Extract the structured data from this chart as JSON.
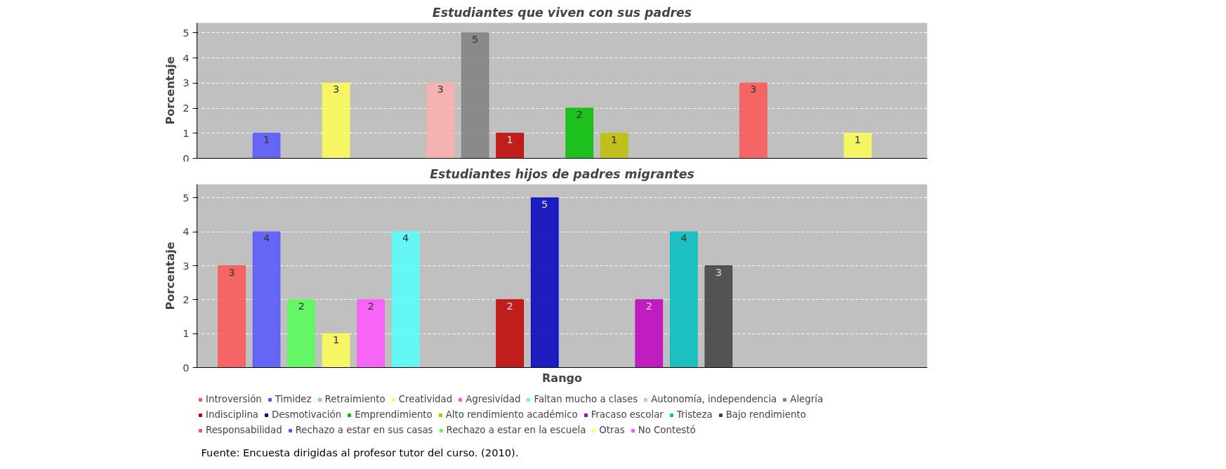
{
  "chart_data": [
    {
      "type": "bar",
      "title": "Estudiantes que viven con sus padres",
      "ylabel": "Porcentaje",
      "categories": [
        null
      ],
      "ylim": [
        0,
        5.4
      ],
      "yticks": [
        0,
        1,
        2,
        3,
        4,
        5
      ],
      "grid": "y",
      "legend": false,
      "series": [
        {
          "color": "#ff5555",
          "values": [
            0
          ],
          "value_labels": [
            null
          ]
        },
        {
          "color": "#5555ff",
          "values": [
            1
          ],
          "value_labels": [
            "1"
          ]
        },
        {
          "color": "#55ff55",
          "values": [
            0
          ],
          "value_labels": [
            null
          ]
        },
        {
          "color": "#ffff55",
          "values": [
            3
          ],
          "value_labels": [
            "3"
          ]
        },
        {
          "color": "#ff55ff",
          "values": [
            0
          ],
          "value_labels": [
            null
          ]
        },
        {
          "color": "#55ffff",
          "values": [
            0
          ],
          "value_labels": [
            null
          ]
        },
        {
          "color": "#ffafaf",
          "values": [
            3
          ],
          "value_labels": [
            "3"
          ]
        },
        {
          "color": "#808080",
          "values": [
            5
          ],
          "value_labels": [
            "5"
          ]
        },
        {
          "color": "#c00000",
          "values": [
            1
          ],
          "value_labels": [
            "1"
          ]
        },
        {
          "color": "#0000c0",
          "values": [
            0
          ],
          "value_labels": [
            null
          ]
        },
        {
          "color": "#00c000",
          "values": [
            2
          ],
          "value_labels": [
            "2"
          ]
        },
        {
          "color": "#c0c000",
          "values": [
            1
          ],
          "value_labels": [
            "1"
          ]
        },
        {
          "color": "#c000c0",
          "values": [
            0
          ],
          "value_labels": [
            null
          ]
        },
        {
          "color": "#00c0c0",
          "values": [
            0
          ],
          "value_labels": [
            null
          ]
        },
        {
          "color": "#404040",
          "values": [
            0
          ],
          "value_labels": [
            null
          ]
        },
        {
          "color": "#ff5555",
          "values": [
            3
          ],
          "value_labels": [
            "3"
          ]
        },
        {
          "color": "#5555ff",
          "values": [
            0
          ],
          "value_labels": [
            null
          ]
        },
        {
          "color": "#55ff55",
          "values": [
            0
          ],
          "value_labels": [
            null
          ]
        },
        {
          "color": "#ffff55",
          "values": [
            1
          ],
          "value_labels": [
            "1"
          ]
        },
        {
          "color": "#ff55ff",
          "values": [
            0
          ],
          "value_labels": [
            null
          ]
        }
      ]
    },
    {
      "type": "bar",
      "title": "Estudiantes hijos de padres migrantes",
      "ylabel": "Porcentaje",
      "xlabel": "Rango",
      "categories": [
        null
      ],
      "ylim": [
        0,
        5.4
      ],
      "yticks": [
        0,
        1,
        2,
        3,
        4,
        5
      ],
      "grid": "y",
      "legend": "bottom",
      "annotations": [
        "Fuente:    Encuesta dirigidas al profesor tutor del curso. (2010)."
      ],
      "series": [
        {
          "name": "Introversión",
          "color": "#ff5555",
          "values": [
            3
          ],
          "value_labels": [
            "3"
          ]
        },
        {
          "name": "Timidez",
          "color": "#5555ff",
          "values": [
            4
          ],
          "value_labels": [
            "4"
          ]
        },
        {
          "name": "Retraimiento",
          "color": "#55ff55",
          "values": [
            2
          ],
          "value_labels": [
            "2"
          ]
        },
        {
          "name": "Creatividad",
          "color": "#ffff55",
          "values": [
            1
          ],
          "value_labels": [
            "1"
          ]
        },
        {
          "name": "Agresividad",
          "color": "#ff55ff",
          "values": [
            2
          ],
          "value_labels": [
            "2"
          ]
        },
        {
          "name": "Faltan mucho a clases",
          "color": "#55ffff",
          "values": [
            4
          ],
          "value_labels": [
            "4"
          ]
        },
        {
          "name": "Autonomía, independencia",
          "color": "#ffafaf",
          "values": [
            0
          ],
          "value_labels": [
            null
          ]
        },
        {
          "name": "Alegría",
          "color": "#808080",
          "values": [
            0
          ],
          "value_labels": [
            null
          ]
        },
        {
          "name": "Indisciplina",
          "color": "#c00000",
          "values": [
            2
          ],
          "value_labels": [
            "2"
          ]
        },
        {
          "name": "Desmotivación",
          "color": "#0000c0",
          "values": [
            5
          ],
          "value_labels": [
            "5"
          ]
        },
        {
          "name": "Emprendimiento",
          "color": "#00c000",
          "values": [
            0
          ],
          "value_labels": [
            null
          ]
        },
        {
          "name": "Alto rendimiento académico",
          "color": "#c0c000",
          "values": [
            0
          ],
          "value_labels": [
            null
          ]
        },
        {
          "name": "Fracaso escolar",
          "color": "#c000c0",
          "values": [
            2
          ],
          "value_labels": [
            "2"
          ]
        },
        {
          "name": "Tristeza",
          "color": "#00c0c0",
          "values": [
            4
          ],
          "value_labels": [
            "4"
          ]
        },
        {
          "name": "Bajo rendimiento",
          "color": "#404040",
          "values": [
            3
          ],
          "value_labels": [
            "3"
          ]
        },
        {
          "name": "Responsabilidad",
          "color": "#ff5555",
          "values": [
            0
          ],
          "value_labels": [
            null
          ]
        },
        {
          "name": "Rechazo a estar en sus casas",
          "color": "#5555ff",
          "values": [
            0
          ],
          "value_labels": [
            null
          ]
        },
        {
          "name": "Rechazo a estar en la escuela",
          "color": "#55ff55",
          "values": [
            0
          ],
          "value_labels": [
            null
          ]
        },
        {
          "name": "Otras",
          "color": "#ffff55",
          "values": [
            0
          ],
          "value_labels": [
            null
          ]
        },
        {
          "name": "No Contestó",
          "color": "#ff55ff",
          "values": [
            0
          ],
          "value_labels": [
            null
          ]
        }
      ]
    }
  ]
}
